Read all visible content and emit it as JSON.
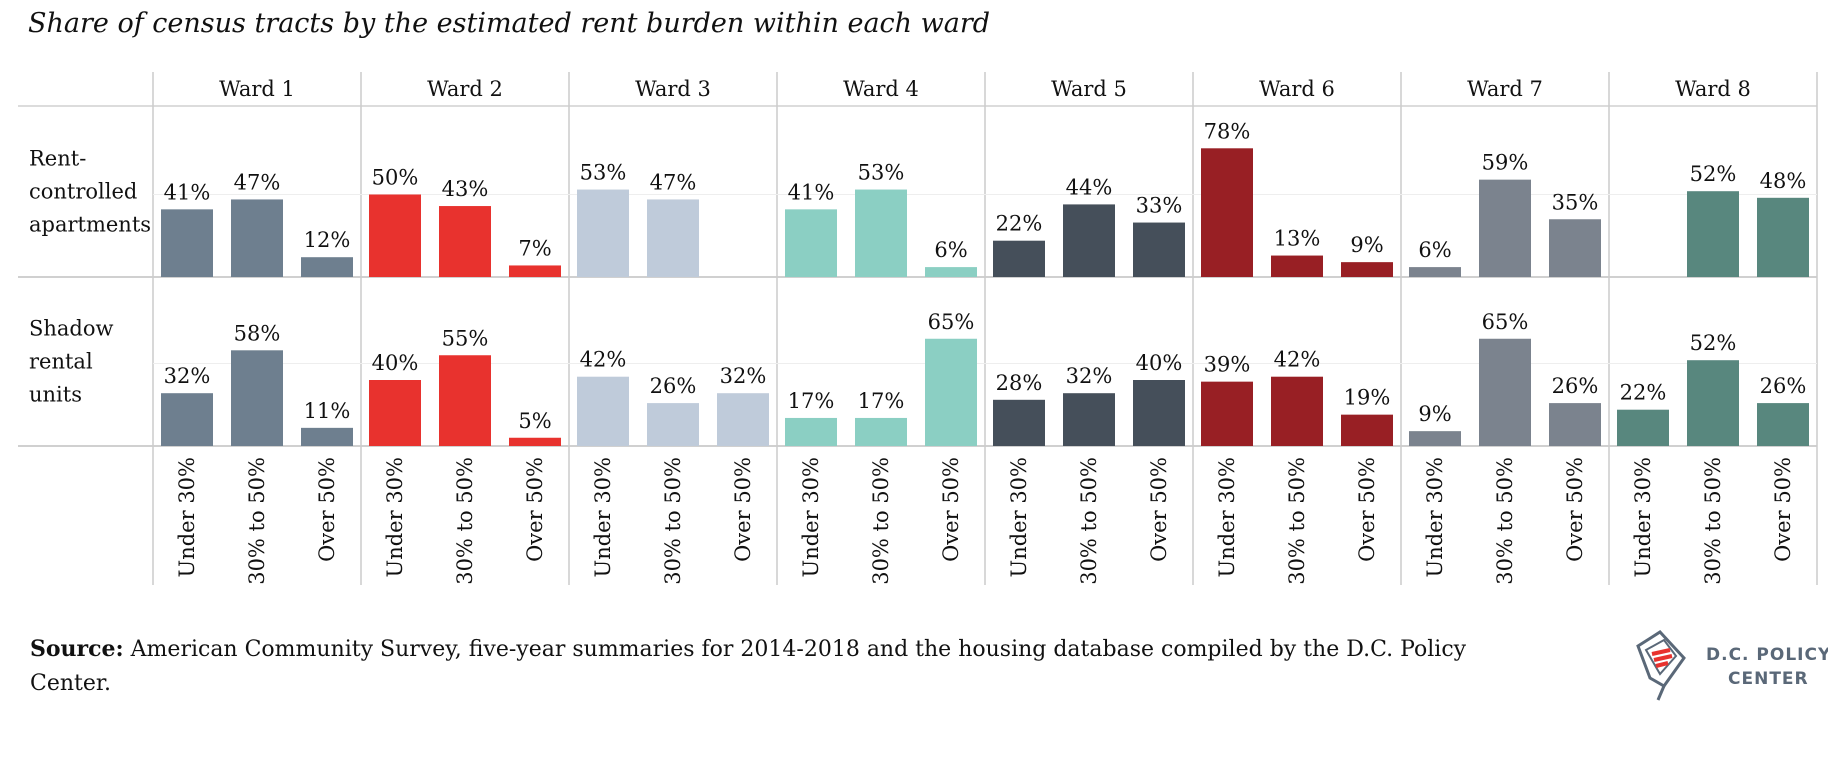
{
  "title": "Share of census tracts by the estimated rent burden within each ward",
  "source": {
    "label": "Source:",
    "text": "American Community Survey, five-year summaries for 2014-2018 and the housing database compiled by the D.C. Policy Center."
  },
  "logo": {
    "line1": "D.C. POLICY",
    "line2": "CENTER"
  },
  "chart_data": {
    "type": "bar",
    "title": "Share of census tracts by the estimated rent burden within each ward",
    "categories": [
      "Under 30%",
      "30% to 50%",
      "Over 50%"
    ],
    "panels": [
      "Ward 1",
      "Ward 2",
      "Ward 3",
      "Ward 4",
      "Ward 5",
      "Ward 6",
      "Ward 7",
      "Ward 8"
    ],
    "rows": [
      "Rent-controlled apartments",
      "Shadow rental units"
    ],
    "row_label_lines": [
      [
        "Rent-",
        "controlled",
        "apartments"
      ],
      [
        "Shadow",
        "rental",
        "units"
      ]
    ],
    "colors": [
      "#6e7f8f",
      "#e8322e",
      "#bfcbda",
      "#8bcfc3",
      "#454f5a",
      "#981f24",
      "#7b838e",
      "#58877e"
    ],
    "values": {
      "Rent-controlled apartments": [
        [
          41,
          47,
          12
        ],
        [
          50,
          43,
          7
        ],
        [
          53,
          47,
          null
        ],
        [
          41,
          53,
          6
        ],
        [
          22,
          44,
          33
        ],
        [
          78,
          13,
          9
        ],
        [
          6,
          59,
          35
        ],
        [
          null,
          52,
          48
        ]
      ],
      "Shadow rental units": [
        [
          32,
          58,
          11
        ],
        [
          40,
          55,
          5
        ],
        [
          42,
          26,
          32
        ],
        [
          17,
          17,
          65
        ],
        [
          28,
          32,
          40
        ],
        [
          39,
          42,
          19
        ],
        [
          9,
          65,
          26
        ],
        [
          22,
          52,
          26
        ]
      ]
    },
    "value_suffix": "%",
    "ylim": [
      0,
      100
    ],
    "grid": true
  }
}
